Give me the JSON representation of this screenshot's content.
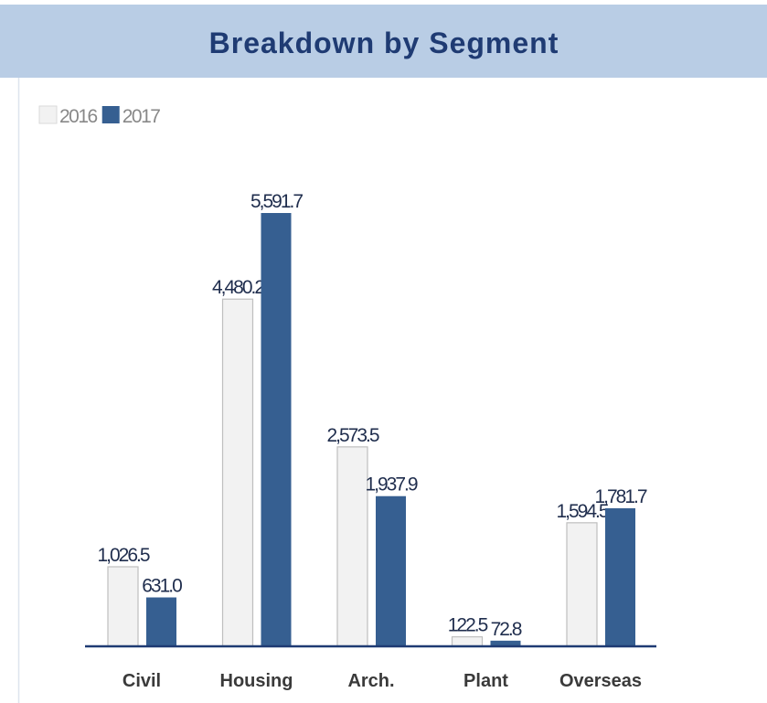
{
  "chart_data": {
    "type": "bar",
    "title": "Breakdown by Segment",
    "categories": [
      "Civil",
      "Housing",
      "Arch.",
      "Plant",
      "Overseas"
    ],
    "series": [
      {
        "name": "2016",
        "color": "#f2f2f2",
        "values": [
          1026.5,
          4480.2,
          2573.5,
          122.5,
          1594.5
        ],
        "value_labels": [
          "1,026.5",
          "4,480.2",
          "2,573.5",
          "122.5",
          "1,594.5"
        ]
      },
      {
        "name": "2017",
        "color": "#365f91",
        "values": [
          631.0,
          5591.7,
          1937.9,
          72.8,
          1781.7
        ],
        "value_labels": [
          "631.0",
          "5,591.7",
          "1,937.9",
          "72.8",
          "1,781.7"
        ]
      }
    ],
    "legend": "top-left"
  }
}
